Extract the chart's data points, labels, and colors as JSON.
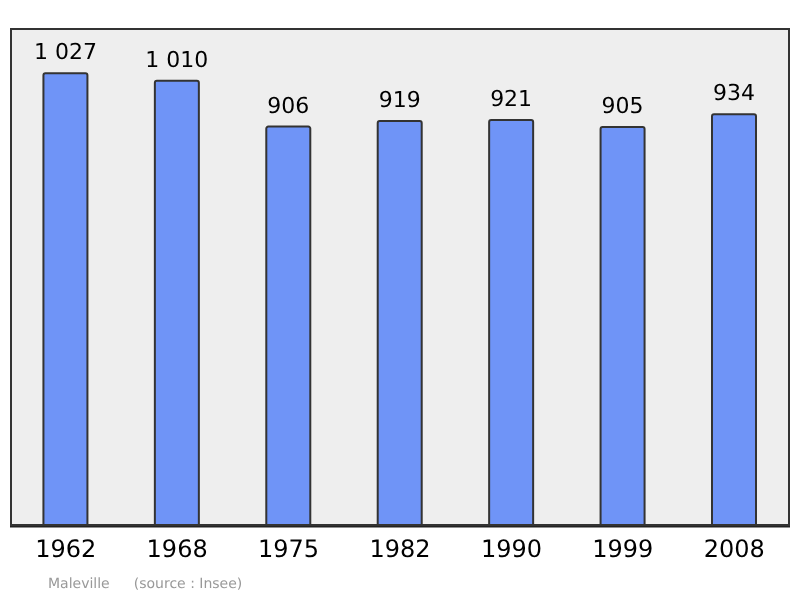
{
  "chart_data": {
    "type": "bar",
    "categories": [
      "1962",
      "1968",
      "1975",
      "1982",
      "1990",
      "1999",
      "2008"
    ],
    "values": [
      1027,
      1010,
      906,
      919,
      921,
      905,
      934
    ],
    "value_labels": [
      "1 027",
      "1 010",
      "906",
      "919",
      "921",
      "905",
      "934"
    ],
    "color": "#6f94f7",
    "annotations": [
      "Maleville",
      "(source : Insee)"
    ]
  }
}
